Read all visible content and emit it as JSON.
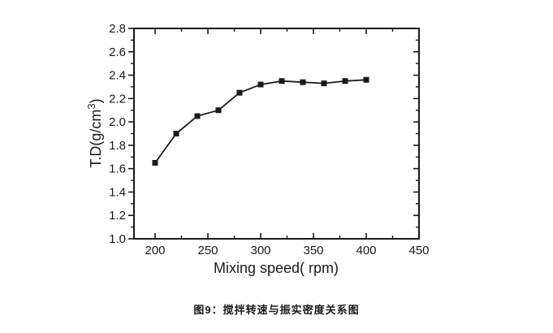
{
  "figure": {
    "caption": "图9：搅拌转速与振实密度关系图"
  },
  "chart_data": {
    "type": "line",
    "title": "",
    "xlabel": "Mixing speed( rpm)",
    "ylabel": "T.D(g/cm³)",
    "ylabel_parts": {
      "main": "T.D(g/cm",
      "sup": "3",
      "close": ")"
    },
    "x": [
      200,
      220,
      240,
      260,
      280,
      300,
      320,
      340,
      360,
      380,
      400
    ],
    "values": [
      1.65,
      1.9,
      2.05,
      2.1,
      2.25,
      2.32,
      2.35,
      2.34,
      2.33,
      2.35,
      2.36
    ],
    "xlim": [
      180,
      450
    ],
    "ylim": [
      1.0,
      2.8
    ],
    "x_major_ticks": [
      200,
      250,
      300,
      350,
      400,
      450
    ],
    "x_minor_ticks": [
      225,
      275,
      325,
      375,
      425
    ],
    "y_major_tick_start": 1.0,
    "y_major_tick_step": 0.2,
    "y_major_tick_count": 10,
    "y_minor_tick_step": 0.1,
    "marker": "filled-square",
    "grid": false,
    "legend": "none",
    "line_color": "#1a1a1a",
    "axis_color": "#1a1a1a",
    "text_color": "#1a1a1a",
    "background_color": "#ffffff"
  }
}
